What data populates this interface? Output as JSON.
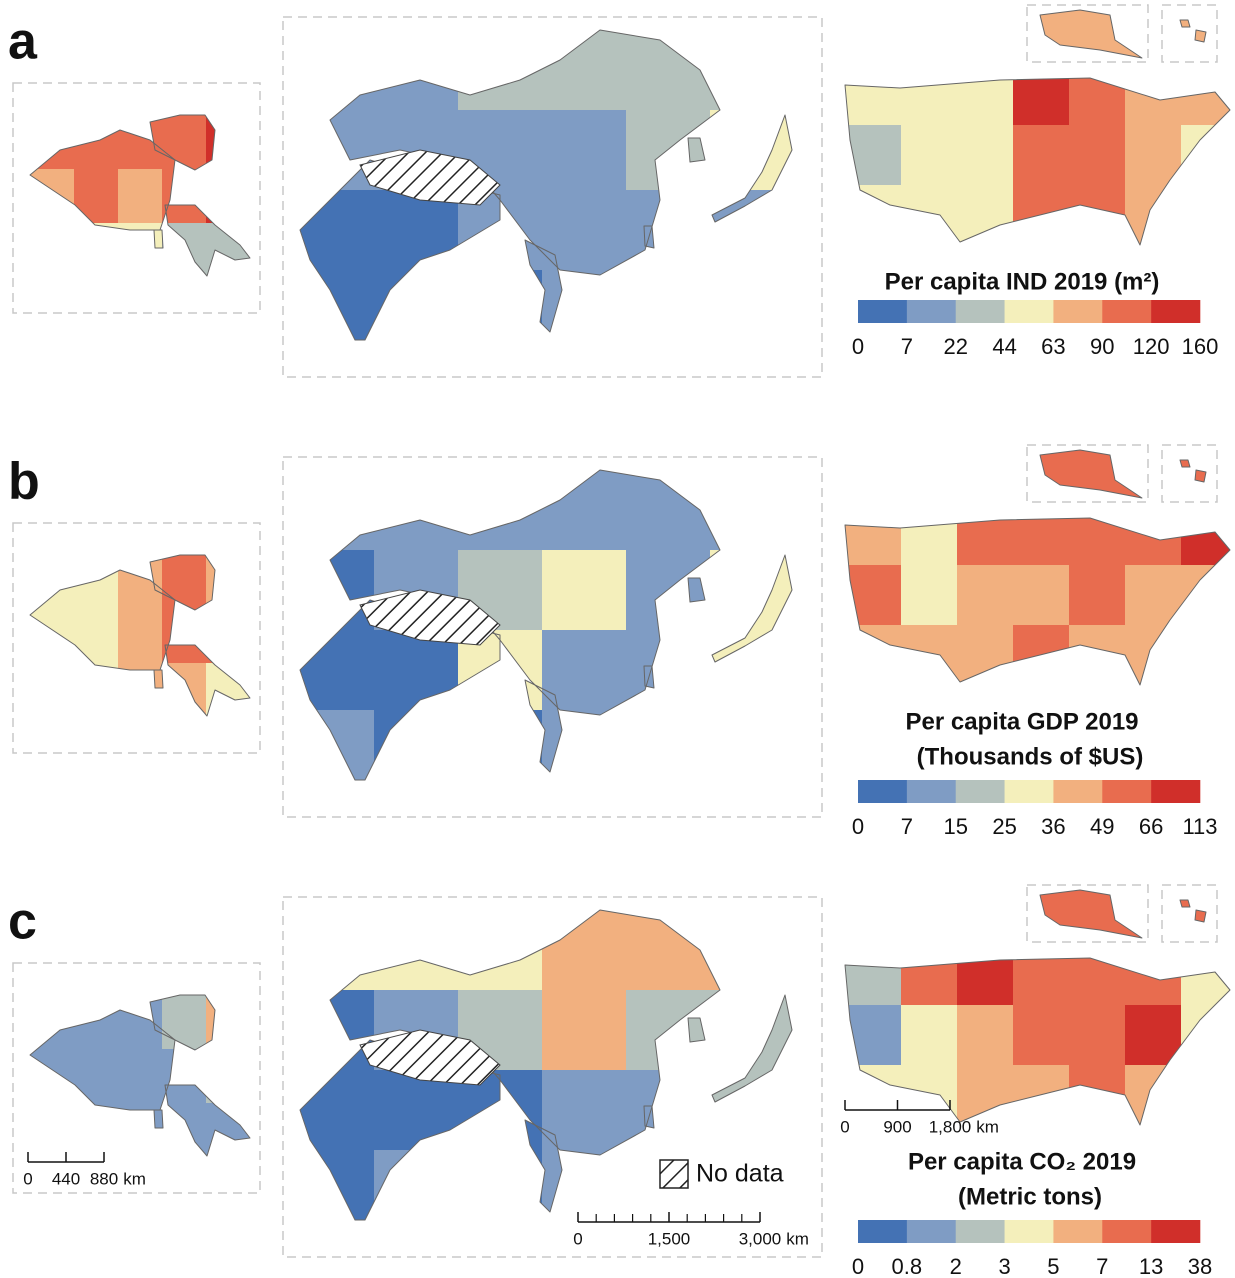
{
  "legend_colors": [
    "#4472b4",
    "#7f9cc4",
    "#b5c2bd",
    "#f4efbb",
    "#f2b07f",
    "#e86c4f",
    "#d02f2a"
  ],
  "panels": [
    {
      "label": "a",
      "legend": {
        "title": "Per capita IND 2019 (m²)",
        "ticks": [
          0,
          7,
          22,
          44,
          63,
          90,
          120,
          160
        ]
      }
    },
    {
      "label": "b",
      "legend": {
        "title": "Per capita GDP 2019",
        "subtitle": "(Thousands of $US)",
        "ticks": [
          0,
          7,
          15,
          25,
          36,
          49,
          66,
          113
        ]
      }
    },
    {
      "label": "c",
      "legend": {
        "title": "Per capita CO₂ 2019",
        "subtitle": "(Metric tons)",
        "ticks": [
          0,
          0.8,
          2,
          3,
          5,
          7,
          13,
          38
        ]
      }
    }
  ],
  "scale_bars": {
    "europe": {
      "ticks": [
        0,
        440,
        880
      ],
      "unit": "km"
    },
    "usa": {
      "ticks": [
        0,
        900,
        {
          "value": 1800,
          "label": "1,800"
        }
      ],
      "unit": "km"
    },
    "asia": {
      "ticks": [
        0,
        {
          "value": 1500,
          "label": "1,500"
        },
        {
          "value": 3000,
          "label": "3,000"
        }
      ],
      "unit": "km"
    }
  },
  "no_data_label": "No data"
}
